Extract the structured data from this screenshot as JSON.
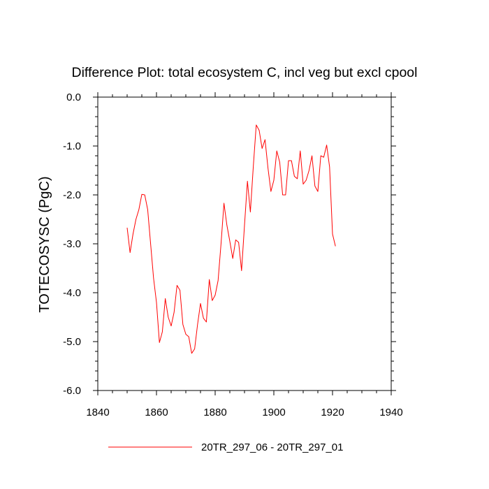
{
  "chart_data": {
    "type": "line",
    "title": "Difference Plot: total ecosystem C, incl veg but excl cpool",
    "xlabel": "",
    "ylabel": "TOTECOSYSC  (PgC)",
    "xlim": [
      1840,
      1940
    ],
    "ylim": [
      -6.0,
      0.0
    ],
    "x_ticks": [
      1840,
      1860,
      1880,
      1900,
      1920,
      1940
    ],
    "x_tick_labels": [
      "1840",
      "1860",
      "1880",
      "1900",
      "1920",
      "1940"
    ],
    "y_ticks": [
      0.0,
      -1.0,
      -2.0,
      -3.0,
      -4.0,
      -5.0,
      -6.0
    ],
    "y_tick_labels": [
      "0.0",
      "-1.0",
      "-2.0",
      "-3.0",
      "-4.0",
      "-5.0",
      "-6.0"
    ],
    "legend_position": "bottom-center",
    "series": [
      {
        "name": "20TR_297_06 - 20TR_297_01",
        "color": "#ff0000",
        "x": [
          1850,
          1851,
          1852,
          1853,
          1854,
          1855,
          1856,
          1857,
          1858,
          1859,
          1860,
          1861,
          1862,
          1863,
          1864,
          1865,
          1866,
          1867,
          1868,
          1869,
          1870,
          1871,
          1872,
          1873,
          1874,
          1875,
          1876,
          1877,
          1878,
          1879,
          1880,
          1881,
          1882,
          1883,
          1884,
          1885,
          1886,
          1887,
          1888,
          1889,
          1890,
          1891,
          1892,
          1893,
          1894,
          1895,
          1896,
          1897,
          1898,
          1899,
          1900,
          1901,
          1902,
          1903,
          1904,
          1905,
          1906,
          1907,
          1908,
          1909,
          1910,
          1911,
          1912,
          1913,
          1914,
          1915,
          1916,
          1917,
          1918,
          1919,
          1920,
          1921
        ],
        "values": [
          -2.67,
          -3.18,
          -2.8,
          -2.5,
          -2.3,
          -1.99,
          -2.0,
          -2.3,
          -3.0,
          -3.7,
          -4.2,
          -5.02,
          -4.8,
          -4.12,
          -4.5,
          -4.68,
          -4.4,
          -3.85,
          -3.95,
          -4.65,
          -4.85,
          -4.9,
          -5.24,
          -5.15,
          -4.65,
          -4.22,
          -4.52,
          -4.6,
          -3.73,
          -4.16,
          -4.05,
          -3.75,
          -3.0,
          -2.17,
          -2.62,
          -2.95,
          -3.3,
          -2.92,
          -2.97,
          -3.55,
          -2.62,
          -1.72,
          -2.35,
          -1.42,
          -0.57,
          -0.68,
          -1.05,
          -0.87,
          -1.45,
          -1.93,
          -1.7,
          -1.1,
          -1.33,
          -2.0,
          -2.0,
          -1.3,
          -1.3,
          -1.62,
          -1.67,
          -1.1,
          -1.78,
          -1.7,
          -1.5,
          -1.2,
          -1.82,
          -1.93,
          -1.2,
          -1.23,
          -0.98,
          -1.43,
          -2.8,
          -3.05
        ]
      }
    ]
  }
}
